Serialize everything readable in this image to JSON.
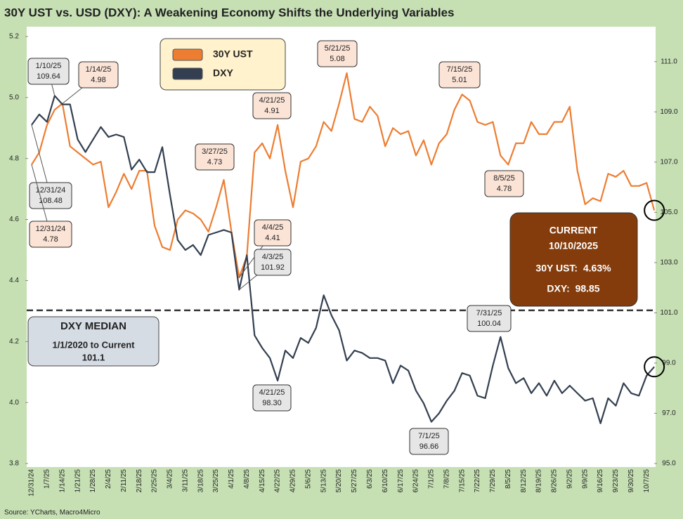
{
  "chart_data": {
    "type": "line",
    "title": "30Y UST vs. USD (DXY): A Weakening Economy Shifts the Underlying Variables",
    "source": "Source: YCharts, Macro4Micro",
    "categories": [
      "12/31/24",
      null,
      "1/7/25",
      null,
      "1/14/25",
      null,
      "1/21/25",
      null,
      "1/28/25",
      null,
      "2/4/25",
      null,
      "2/11/25",
      null,
      "2/18/25",
      null,
      "2/25/25",
      null,
      "3/4/25",
      null,
      "3/11/25",
      null,
      "3/18/25",
      null,
      "3/25/25",
      null,
      "4/1/25",
      null,
      "4/8/25",
      null,
      "4/15/25",
      null,
      "4/22/25",
      null,
      "4/29/25",
      null,
      "5/6/25",
      null,
      "5/13/25",
      null,
      "5/20/25",
      null,
      "5/27/25",
      null,
      "6/3/25",
      null,
      "6/10/25",
      null,
      "6/17/25",
      null,
      "6/24/25",
      null,
      "7/1/25",
      null,
      "7/8/25",
      null,
      "7/15/25",
      null,
      "7/22/25",
      null,
      "7/29/25",
      null,
      "8/5/25",
      null,
      "8/12/25",
      null,
      "8/19/25",
      null,
      "8/26/25",
      null,
      "9/2/25",
      null,
      "9/9/25",
      null,
      "9/16/25",
      null,
      "9/23/25",
      null,
      "9/30/25",
      null,
      "10/7/25",
      null
    ],
    "series": [
      {
        "name": "30Y UST",
        "color": "#ed7d31",
        "values": [
          4.78,
          4.82,
          4.91,
          4.96,
          4.98,
          4.84,
          4.82,
          4.8,
          4.78,
          4.79,
          4.64,
          4.69,
          4.75,
          4.7,
          4.76,
          4.76,
          4.58,
          4.51,
          4.5,
          4.6,
          4.63,
          4.62,
          4.6,
          4.56,
          4.64,
          4.73,
          4.56,
          4.41,
          4.48,
          4.82,
          4.85,
          4.8,
          4.91,
          4.76,
          4.64,
          4.79,
          4.8,
          4.84,
          4.92,
          4.89,
          4.98,
          5.08,
          4.93,
          4.92,
          4.97,
          4.94,
          4.84,
          4.9,
          4.88,
          4.89,
          4.81,
          4.86,
          4.78,
          4.85,
          4.88,
          4.96,
          5.01,
          4.99,
          4.92,
          4.91,
          4.92,
          4.81,
          4.78,
          4.85,
          4.85,
          4.92,
          4.88,
          4.88,
          4.92,
          4.92,
          4.97,
          4.76,
          4.65,
          4.67,
          4.66,
          4.75,
          4.74,
          4.76,
          4.71,
          4.71,
          4.72,
          4.63
        ]
      },
      {
        "name": "DXY",
        "color": "#333f50",
        "axis": "y2",
        "values": [
          108.48,
          108.9,
          108.6,
          109.64,
          109.3,
          109.3,
          107.9,
          107.4,
          107.9,
          108.4,
          108.0,
          108.1,
          108.0,
          106.7,
          107.1,
          106.6,
          106.6,
          107.6,
          105.7,
          103.9,
          103.5,
          103.7,
          103.3,
          104.1,
          104.2,
          104.3,
          104.2,
          101.92,
          103.3,
          100.1,
          99.6,
          99.2,
          98.3,
          99.5,
          99.2,
          100.0,
          99.8,
          100.4,
          101.7,
          100.9,
          100.3,
          99.1,
          99.5,
          99.4,
          99.2,
          99.2,
          99.1,
          98.2,
          98.9,
          98.7,
          97.9,
          97.4,
          96.66,
          97.0,
          97.5,
          97.9,
          98.6,
          98.5,
          97.7,
          97.6,
          98.9,
          100.04,
          98.8,
          98.2,
          98.4,
          97.8,
          98.2,
          97.7,
          98.3,
          97.8,
          98.1,
          97.8,
          97.5,
          97.6,
          96.6,
          97.6,
          97.3,
          98.2,
          97.8,
          97.7,
          98.5,
          98.85
        ]
      }
    ],
    "ylim": [
      3.8,
      5.2
    ],
    "yticks": [
      3.8,
      {
        "value": 4,
        "label": "4.0"
      },
      4.2,
      4.4,
      4.6,
      4.8,
      {
        "value": 5,
        "label": "5.0"
      },
      5.2
    ],
    "y2lim": [
      95,
      112
    ],
    "y2ticks": [
      {
        "value": 95,
        "label": "95.0"
      },
      {
        "value": 97,
        "label": "97.0"
      },
      {
        "value": 99,
        "label": "99.0"
      },
      {
        "value": 101,
        "label": "101.0"
      },
      {
        "value": 103,
        "label": "103.0"
      },
      {
        "value": 105,
        "label": "105.0"
      },
      {
        "value": 107,
        "label": "107.0"
      },
      {
        "value": 109,
        "label": "109.0"
      },
      {
        "value": 111,
        "label": "111.0"
      }
    ],
    "grid": false,
    "median": {
      "title": "DXY MEDIAN",
      "period": "1/1/2020 to Current",
      "value": 101.1
    },
    "current": {
      "title": "CURRENT",
      "date": "10/10/2025",
      "ust": "30Y UST:  4.63%",
      "dxy": "DXY:  98.85"
    },
    "annotations": [
      {
        "date": "1/10/25",
        "label": "109.64"
      },
      {
        "date": "1/14/25",
        "label": "4.98"
      },
      {
        "date": "12/31/24",
        "label": "108.48"
      },
      {
        "date": "12/31/24",
        "label": "4.78"
      },
      {
        "date": "3/27/25",
        "label": "4.73"
      },
      {
        "date": "4/21/25",
        "label": "4.91"
      },
      {
        "date": "5/21/25",
        "label": "5.08"
      },
      {
        "date": "7/15/25",
        "label": "5.01"
      },
      {
        "date": "8/5/25",
        "label": "4.78"
      },
      {
        "date": "4/4/25",
        "label": "4.41"
      },
      {
        "date": "4/3/25",
        "label": "101.92"
      },
      {
        "date": "4/21/25",
        "label": "98.30"
      },
      {
        "date": "7/31/25",
        "label": "100.04"
      },
      {
        "date": "7/1/25",
        "label": "96.66"
      }
    ]
  }
}
